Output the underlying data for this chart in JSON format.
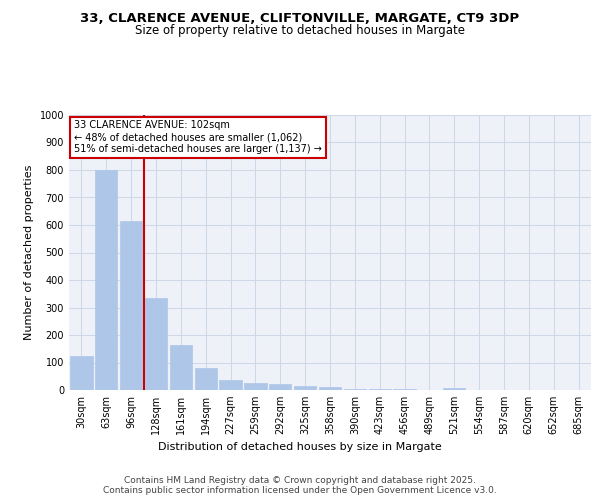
{
  "title_line1": "33, CLARENCE AVENUE, CLIFTONVILLE, MARGATE, CT9 3DP",
  "title_line2": "Size of property relative to detached houses in Margate",
  "xlabel": "Distribution of detached houses by size in Margate",
  "ylabel": "Number of detached properties",
  "categories": [
    "30sqm",
    "63sqm",
    "96sqm",
    "128sqm",
    "161sqm",
    "194sqm",
    "227sqm",
    "259sqm",
    "292sqm",
    "325sqm",
    "358sqm",
    "390sqm",
    "423sqm",
    "456sqm",
    "489sqm",
    "521sqm",
    "554sqm",
    "587sqm",
    "620sqm",
    "652sqm",
    "685sqm"
  ],
  "values": [
    125,
    800,
    615,
    335,
    165,
    80,
    38,
    25,
    22,
    15,
    10,
    5,
    5,
    2,
    0,
    8,
    0,
    0,
    0,
    0,
    0
  ],
  "bar_color": "#aec6e8",
  "bar_edge_color": "#aec6e8",
  "vline_x": 2.5,
  "vline_color": "#cc0000",
  "annotation_text": "33 CLARENCE AVENUE: 102sqm\n← 48% of detached houses are smaller (1,062)\n51% of semi-detached houses are larger (1,137) →",
  "annotation_box_color": "#ffffff",
  "annotation_box_edge": "#cc0000",
  "ylim": [
    0,
    1000
  ],
  "yticks": [
    0,
    100,
    200,
    300,
    400,
    500,
    600,
    700,
    800,
    900,
    1000
  ],
  "grid_color": "#d0d8e8",
  "bg_color": "#eef2f8",
  "footer_line1": "Contains HM Land Registry data © Crown copyright and database right 2025.",
  "footer_line2": "Contains public sector information licensed under the Open Government Licence v3.0.",
  "title_fontsize": 9.5,
  "subtitle_fontsize": 8.5,
  "axis_label_fontsize": 8,
  "tick_fontsize": 7,
  "annotation_fontsize": 7,
  "footer_fontsize": 6.5
}
